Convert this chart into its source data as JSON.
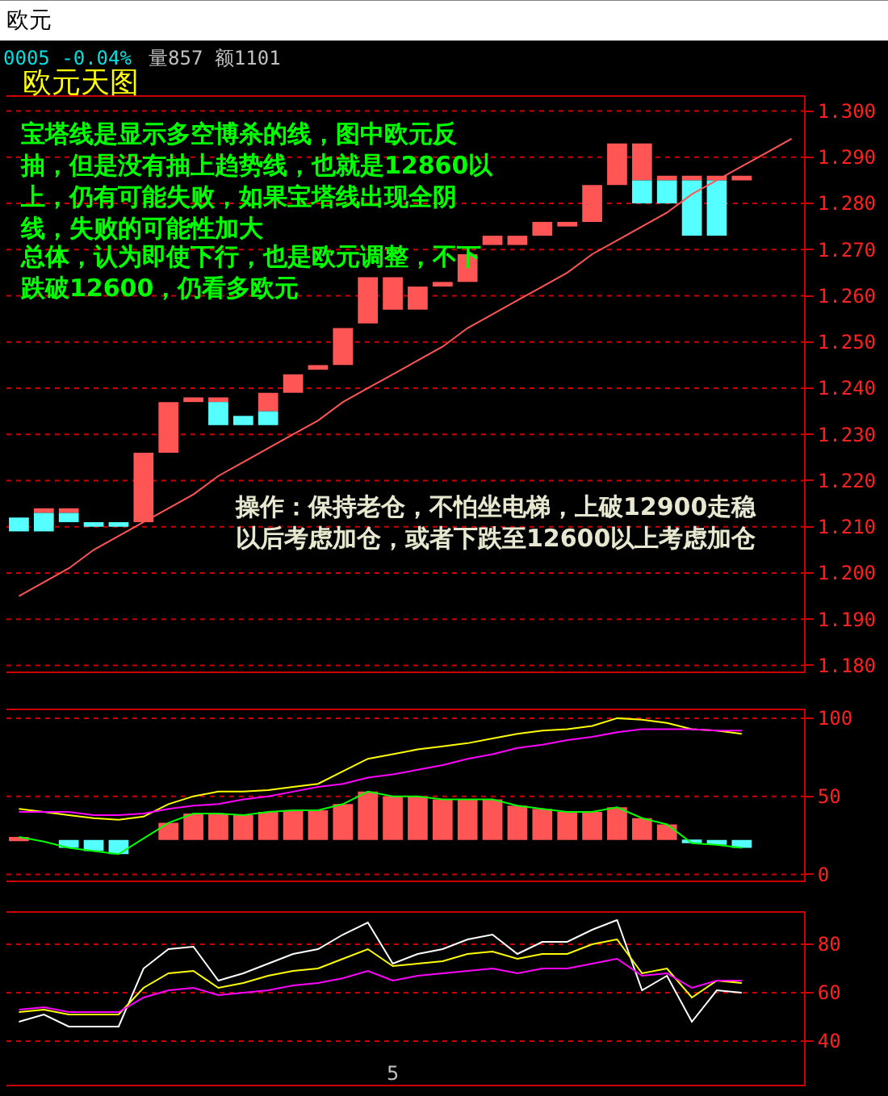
{
  "chart_data": [
    {
      "type": "bar",
      "title": "欧元天图",
      "categories": [
        null,
        null,
        null,
        null,
        null,
        null,
        null,
        null,
        null,
        null,
        null,
        null,
        null,
        null,
        null,
        null,
        null,
        null,
        null,
        null,
        null,
        null,
        null,
        null,
        null,
        null,
        null,
        null,
        null,
        null,
        null,
        null
      ],
      "series": [
        {
          "type": "bar",
          "color": "#ff5555",
          "base": [
            null,
            1.213,
            1.213,
            null,
            null,
            1.211,
            1.226,
            1.237,
            1.237,
            null,
            1.235,
            1.239,
            1.244,
            1.245,
            1.254,
            1.257,
            1.257,
            1.262,
            1.263,
            1.271,
            1.271,
            1.273,
            1.275,
            1.276,
            1.284,
            1.285,
            1.285,
            1.285,
            1.285,
            1.285,
            null,
            null
          ],
          "values": [
            null,
            0.001,
            0.001,
            null,
            null,
            0.015,
            0.011,
            0.001,
            0.001,
            null,
            0.004,
            0.004,
            0.001,
            0.008,
            0.01,
            0.007,
            0.005,
            0.001,
            0.006,
            0.002,
            0.002,
            0.003,
            0.001,
            0.008,
            0.009,
            0.008,
            0.001,
            0.001,
            0.001,
            0.001,
            null,
            null
          ]
        },
        {
          "type": "bar",
          "color": "#55ffff",
          "base": [
            1.209,
            1.209,
            1.211,
            1.21,
            1.21,
            null,
            null,
            null,
            1.232,
            1.232,
            1.232,
            null,
            null,
            null,
            null,
            null,
            null,
            null,
            null,
            null,
            null,
            null,
            null,
            null,
            null,
            1.28,
            1.28,
            1.273,
            1.273,
            null,
            null,
            null
          ],
          "values": [
            0.003,
            0.004,
            0.002,
            0.001,
            0.001,
            null,
            null,
            null,
            0.005,
            0.002,
            0.003,
            null,
            null,
            null,
            null,
            null,
            null,
            null,
            null,
            null,
            null,
            null,
            null,
            null,
            null,
            0.005,
            0.005,
            0.012,
            0.012,
            null,
            null,
            null
          ]
        },
        {
          "type": "line",
          "color": "#ff5555",
          "values": [
            1.195,
            1.198,
            1.201,
            1.205,
            1.208,
            1.211,
            1.214,
            1.217,
            1.221,
            1.224,
            1.227,
            1.23,
            1.233,
            1.237,
            1.24,
            1.243,
            1.246,
            1.249,
            1.253,
            1.256,
            1.259,
            1.262,
            1.265,
            1.269,
            1.272,
            1.275,
            1.278,
            1.282,
            1.285,
            1.288,
            1.291,
            1.294
          ]
        }
      ],
      "ylim": [
        1.1786,
        1.3031
      ],
      "yticks": [
        {
          "value": 1.18,
          "label": "1.180"
        },
        {
          "value": 1.19,
          "label": "1.190"
        },
        {
          "value": 1.2,
          "label": "1.200"
        },
        {
          "value": 1.21,
          "label": "1.210"
        },
        {
          "value": 1.22,
          "label": "1.220"
        },
        {
          "value": 1.23,
          "label": "1.230"
        },
        {
          "value": 1.24,
          "label": "1.240"
        },
        {
          "value": 1.25,
          "label": "1.250"
        },
        {
          "value": 1.26,
          "label": "1.260"
        },
        {
          "value": 1.27,
          "label": "1.270"
        },
        {
          "value": 1.28,
          "label": "1.280"
        },
        {
          "value": 1.29,
          "label": "1.290"
        },
        {
          "value": 1.3,
          "label": "1.300"
        }
      ],
      "grid": "y",
      "tick_labels": "y",
      "annotations": [
        "欧元",
        "0005 -0.04%",
        "量857 额1101",
        "宝塔线是显示多空博杀的线，图中欧元反抽，但是没有抽上趋势线，也就是12860以上，仍有可能失败，如果宝塔线出现全阴线，失败的可能性加大",
        "总体，认为即使下行，也是欧元调整，不下跌破12600，仍看多欧元",
        "操作：保持老仓，不怕坐电梯，上破12900走稳以后考虑加仓，或者下跌至12600以上考虑加仓"
      ]
    },
    {
      "type": "line",
      "categories": [
        null,
        null,
        null,
        null,
        null,
        null,
        null,
        null,
        null,
        null,
        null,
        null,
        null,
        null,
        null,
        null,
        null,
        null,
        null,
        null,
        null,
        null,
        null,
        null,
        null,
        null,
        null,
        null,
        null,
        null,
        null,
        null
      ],
      "series": [
        {
          "type": "bar",
          "colors": [
            "#ff5555",
            "#ff5555",
            "#55ffff",
            "#55ffff",
            "#55ffff",
            "#ff5555",
            "#ff5555",
            "#ff5555",
            "#ff5555",
            "#ff5555",
            "#ff5555",
            "#ff5555",
            "#ff5555",
            "#ff5555",
            "#ff5555",
            "#ff5555",
            "#ff5555",
            "#ff5555",
            "#ff5555",
            "#ff5555",
            "#ff5555",
            "#ff5555",
            "#ff5555",
            "#ff5555",
            "#ff5555",
            "#ff5555",
            "#ff5555",
            "#55ffff",
            "#55ffff",
            "#55ffff",
            "#ff5555",
            "#ff5555"
          ],
          "base": [
            22,
            null,
            22,
            22,
            22,
            null,
            22,
            22,
            22,
            22,
            22,
            22,
            22,
            22,
            22,
            22,
            22,
            22,
            22,
            22,
            22,
            22,
            22,
            22,
            22,
            22,
            22,
            22,
            22,
            22,
            null,
            null
          ],
          "values": [
            2,
            null,
            -5,
            -7,
            -9,
            null,
            11,
            17,
            17,
            16,
            18,
            19,
            19,
            23,
            31,
            28,
            28,
            26,
            26,
            26,
            22,
            20,
            18,
            18,
            21,
            14,
            10,
            -2,
            -3,
            -5,
            null,
            null
          ]
        },
        {
          "color": "#00ff00",
          "values": [
            24,
            21,
            17,
            15,
            13,
            23,
            33,
            39,
            39,
            38,
            40,
            41,
            41,
            45,
            53,
            50,
            50,
            48,
            48,
            48,
            44,
            42,
            40,
            40,
            43,
            36,
            32,
            20,
            19,
            17,
            null,
            null
          ]
        },
        {
          "color": "#ffff00",
          "values": [
            42,
            40,
            38,
            36,
            35,
            37,
            45,
            50,
            53,
            53,
            54,
            56,
            58,
            66,
            74,
            77,
            80,
            82,
            84,
            87,
            90,
            92,
            93,
            95,
            100,
            99,
            97,
            93,
            92,
            90,
            null,
            null
          ]
        },
        {
          "color": "#ff00ff",
          "values": [
            40,
            40,
            40,
            38,
            38,
            39,
            42,
            44,
            45,
            48,
            50,
            53,
            56,
            58,
            62,
            64,
            67,
            70,
            74,
            77,
            81,
            83,
            86,
            88,
            91,
            93,
            93,
            93,
            92,
            92,
            null,
            null
          ]
        }
      ],
      "ylim": [
        -4,
        105
      ],
      "yticks": [
        0,
        50,
        100
      ],
      "grid": "y",
      "tick_labels": "y"
    },
    {
      "type": "line",
      "categories": [
        null,
        null,
        null,
        null,
        null,
        null,
        null,
        null,
        null,
        null,
        null,
        null,
        null,
        null,
        null,
        "5",
        null,
        null,
        null,
        null,
        null,
        null,
        null,
        null,
        null,
        null,
        null,
        null,
        null,
        null,
        null,
        null
      ],
      "series": [
        {
          "color": "#ffffff",
          "values": [
            48,
            51,
            46,
            46,
            46,
            70,
            78,
            79,
            65,
            68,
            72,
            76,
            78,
            84,
            89,
            72,
            76,
            78,
            82,
            84,
            76,
            81,
            81,
            86,
            90,
            61,
            67,
            48,
            61,
            60,
            null,
            null
          ]
        },
        {
          "color": "#ffff00",
          "values": [
            52,
            53,
            51,
            51,
            51,
            62,
            68,
            69,
            62,
            64,
            67,
            69,
            70,
            74,
            78,
            71,
            72,
            73,
            76,
            77,
            74,
            76,
            76,
            80,
            82,
            68,
            70,
            58,
            65,
            64,
            null,
            null
          ]
        },
        {
          "color": "#ff00ff",
          "values": [
            53,
            54,
            52,
            52,
            52,
            58,
            61,
            62,
            59,
            60,
            61,
            63,
            64,
            66,
            69,
            65,
            67,
            68,
            69,
            70,
            68,
            70,
            70,
            72,
            74,
            67,
            68,
            62,
            65,
            65,
            null,
            null
          ]
        }
      ],
      "ylim": [
        22,
        93
      ],
      "yticks": [
        40,
        60,
        80
      ],
      "grid": "y"
    }
  ]
}
